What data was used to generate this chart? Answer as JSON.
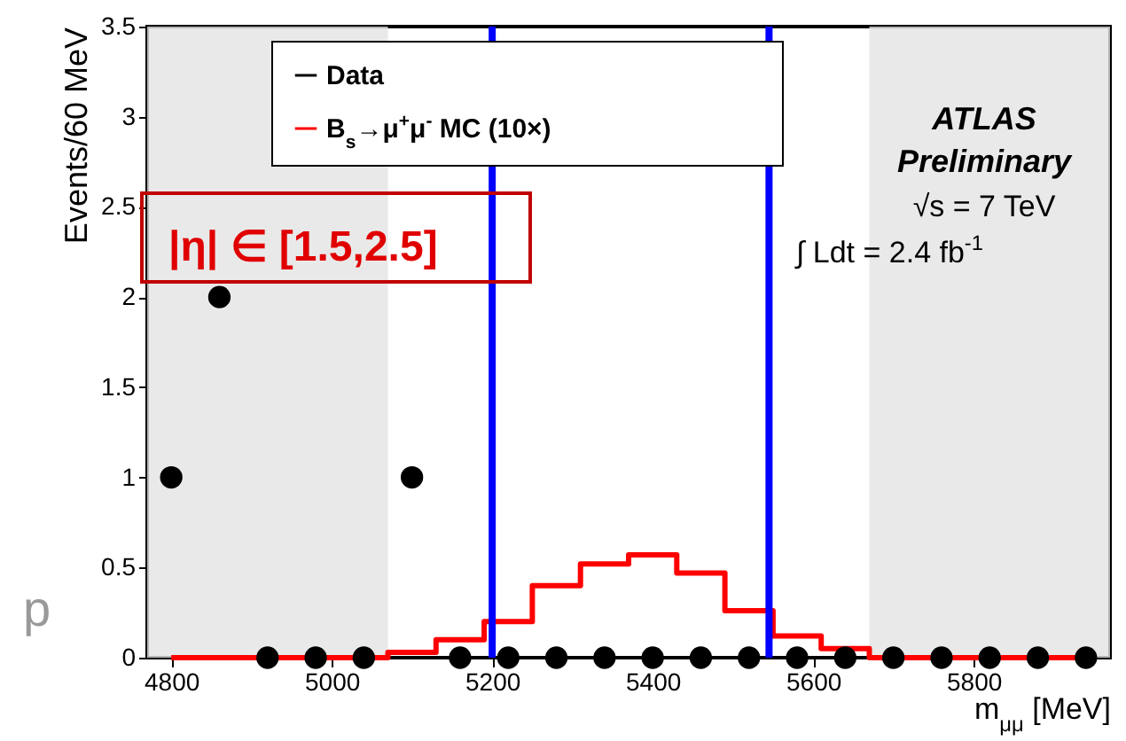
{
  "chart_data": {
    "type": "scatter",
    "xlabel": "m$_{μμ}$ [MeV]",
    "ylabel": "Events/60 MeV",
    "x": [
      4800,
      4860,
      4920,
      4980,
      5040,
      5100,
      5160,
      5220,
      5280,
      5340,
      5400,
      5460,
      5520,
      5580,
      5640,
      5700,
      5760,
      5820,
      5880,
      5940
    ],
    "series": [
      {
        "name": "Data",
        "color": "#000000",
        "marker": "circle",
        "values": [
          1,
          2,
          0,
          0,
          0,
          1,
          0,
          0,
          0,
          0,
          0,
          0,
          0,
          0,
          0,
          0,
          0,
          0,
          0,
          0
        ]
      },
      {
        "name": "B$_{s}$→μ$^{+}$μ$^{-}$ MC (10×)",
        "type": "step",
        "color": "#ff0000",
        "values": [
          0,
          0,
          0,
          0,
          0,
          0.03,
          0.1,
          0.2,
          0.4,
          0.52,
          0.57,
          0.47,
          0.26,
          0.12,
          0.05,
          0,
          0,
          0,
          0,
          0
        ]
      }
    ],
    "xlim": [
      4770,
      5970
    ],
    "xticks": [
      4800,
      5000,
      5200,
      5400,
      5600,
      5800
    ],
    "ylim": [
      0,
      3.5
    ],
    "yticks": [
      0,
      0.5,
      1,
      1.5,
      2,
      2.5,
      3,
      3.5
    ],
    "ref_lines": [
      {
        "axis": "x",
        "value": 5200,
        "color": "#0000ff"
      },
      {
        "axis": "x",
        "value": 5545,
        "color": "#0000ff"
      }
    ],
    "bands": [
      {
        "axis": "x",
        "from": 4770,
        "to": 5070,
        "color": "#e4e4e4"
      },
      {
        "axis": "x",
        "from": 5670,
        "to": 5970,
        "color": "#e4e4e4"
      }
    ],
    "annotations": [
      "ATLAS",
      "Preliminary",
      "√s = 7 TeV",
      "∫ Ldt = 2.4 fb$^{-1}$",
      "|η| ∈ [1.5,2.5]",
      "p"
    ],
    "legend": "top",
    "grid": false
  }
}
